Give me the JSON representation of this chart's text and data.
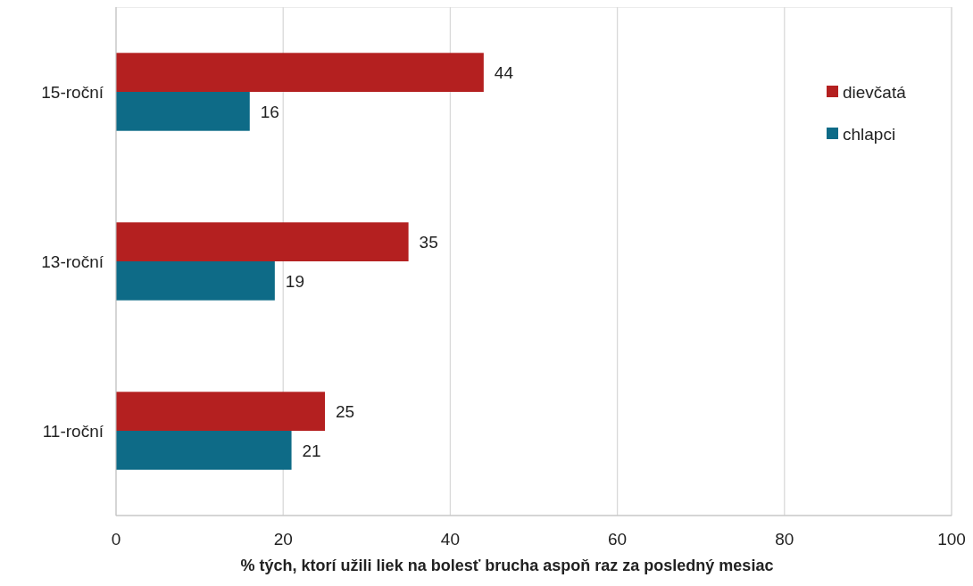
{
  "chart_data": {
    "type": "bar",
    "orientation": "horizontal",
    "xlabel": "% tých, ktorí užili liek na bolesť brucha aspoň raz za posledný mesiac",
    "categories": [
      "15-roční",
      "13-roční",
      "11-roční"
    ],
    "series": [
      {
        "name": "dievčatá",
        "color": "#b42020",
        "values": [
          44,
          35,
          25
        ]
      },
      {
        "name": "chlapci",
        "color": "#0e6b87",
        "values": [
          16,
          19,
          21
        ]
      }
    ],
    "xlim": [
      0,
      100
    ],
    "xticks": [
      0,
      20,
      40,
      60,
      80,
      100
    ],
    "grid": "x",
    "legend": "top right",
    "data_labels": true
  }
}
